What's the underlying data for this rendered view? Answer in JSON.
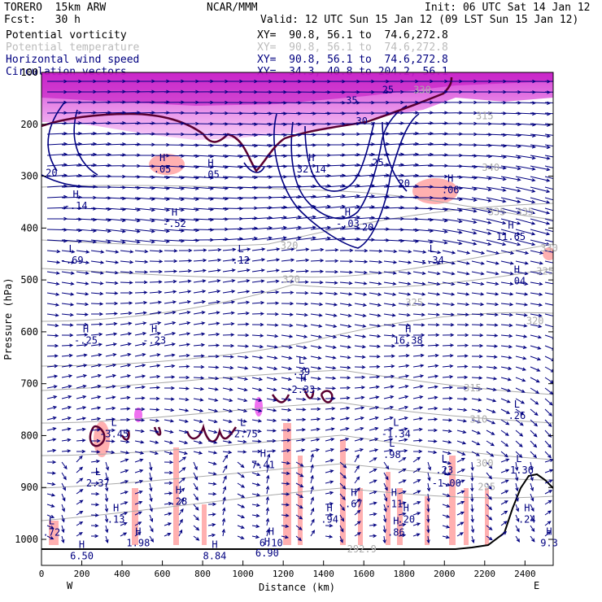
{
  "header": {
    "model": "TORERO  15km ARW",
    "org": "NCAR/MMM",
    "init": "Init: 06 UTC Sat 14 Jan 12",
    "fcst": "Fcst:   30 h",
    "valid": "Valid: 12 UTC Sun 15 Jan 12 (09 LST Sun 15 Jan 12)"
  },
  "legend": [
    {
      "name": "Potential vorticity",
      "xy": "XY=  90.8, 56.1 to  74.6,272.8",
      "color": "#000000"
    },
    {
      "name": "Potential temperature",
      "xy": "XY=  90.8, 56.1 to  74.6,272.8",
      "color": "#bbbbbb"
    },
    {
      "name": "Horizontal wind speed",
      "xy": "XY=  90.8, 56.1 to  74.6,272.8",
      "color": "#000080"
    },
    {
      "name": "Circulation vectors",
      "xy": "XY=  34.3, 40.8 to 204.2, 56.1",
      "color": "#000080"
    }
  ],
  "colors": {
    "pv_fill": "#e040e0",
    "pv_light": "#ffb0b0",
    "wind": "#000080",
    "theta": "#aaaaaa",
    "terrain_line": "#000000",
    "pv_contour": "#5a0030"
  },
  "chart_data": {
    "type": "cross-section",
    "xlabel": "Distance (km)",
    "ylabel": "Pressure (hPa)",
    "xlim": [
      0,
      2540
    ],
    "ylim": [
      1050,
      100
    ],
    "x_ticks": [
      "0",
      "200",
      "400",
      "600",
      "800",
      "1000",
      "1200",
      "1400",
      "1600",
      "1800",
      "2000",
      "2200",
      "2400"
    ],
    "y_ticks": [
      "100",
      "200",
      "300",
      "400",
      "500",
      "600",
      "700",
      "800",
      "900",
      "1000"
    ],
    "left_end": "W",
    "right_end": "E",
    "wind_speed_contours": [
      {
        "level": "20",
        "x": 50,
        "p": 300
      },
      {
        "level": "25",
        "x": 1720,
        "p": 140
      },
      {
        "level": "30",
        "x": 1590,
        "p": 200
      },
      {
        "level": "35",
        "x": 1540,
        "p": 160
      },
      {
        "level": "25",
        "x": 1670,
        "p": 280
      },
      {
        "level": "20",
        "x": 1800,
        "p": 320
      },
      {
        "level": "20",
        "x": 1620,
        "p": 405
      }
    ],
    "theta_labels": [
      {
        "text": "330",
        "x": 1890,
        "p": 140
      },
      {
        "text": "315",
        "x": 2200,
        "p": 190
      },
      {
        "text": "340",
        "x": 2230,
        "p": 290
      },
      {
        "text": "335",
        "x": 2260,
        "p": 375
      },
      {
        "text": "335",
        "x": 2400,
        "p": 375
      },
      {
        "text": "330",
        "x": 2520,
        "p": 445
      },
      {
        "text": "325",
        "x": 2500,
        "p": 490
      },
      {
        "text": "320",
        "x": 1230,
        "p": 440
      },
      {
        "text": "320",
        "x": 1240,
        "p": 505
      },
      {
        "text": "325",
        "x": 1850,
        "p": 550
      },
      {
        "text": "320",
        "x": 2450,
        "p": 585
      },
      {
        "text": "315",
        "x": 2140,
        "p": 715
      },
      {
        "text": "310",
        "x": 2170,
        "p": 775
      },
      {
        "text": "300",
        "x": 2200,
        "p": 860
      },
      {
        "text": "295",
        "x": 2210,
        "p": 905
      },
      {
        "text": "292.9",
        "x": 1590,
        "p": 1025
      }
    ],
    "extrema": [
      {
        "type": "H",
        "value": ".05",
        "x": 600,
        "p": 290
      },
      {
        "type": "H",
        "value": ".05",
        "x": 840,
        "p": 300
      },
      {
        "type": "H",
        "value": "32.14",
        "x": 1340,
        "p": 290
      },
      {
        "type": "H",
        "value": ".06",
        "x": 2030,
        "p": 330
      },
      {
        "type": "H",
        "value": "-.14",
        "x": 170,
        "p": 360
      },
      {
        "type": "H",
        "value": "-.52",
        "x": 660,
        "p": 395
      },
      {
        "type": "H",
        "value": "-.03",
        "x": 1520,
        "p": 395
      },
      {
        "type": "H",
        "value": "11.65",
        "x": 2330,
        "p": 420
      },
      {
        "type": "L",
        "value": "-.69",
        "x": 150,
        "p": 465
      },
      {
        "type": "L",
        "value": ".12",
        "x": 990,
        "p": 465
      },
      {
        "type": "L",
        "value": "-.34",
        "x": 1940,
        "p": 465
      },
      {
        "type": "H",
        "value": ".04",
        "x": 2360,
        "p": 505
      },
      {
        "type": "H",
        "value": "-.25",
        "x": 220,
        "p": 620
      },
      {
        "type": "H",
        "value": "-.23",
        "x": 560,
        "p": 620
      },
      {
        "type": "H",
        "value": "16.38",
        "x": 1820,
        "p": 620
      },
      {
        "type": "L",
        "value": ".39",
        "x": 1290,
        "p": 680
      },
      {
        "type": "H",
        "value": "2.33",
        "x": 1300,
        "p": 715
      },
      {
        "type": "L",
        "value": ".26",
        "x": 2360,
        "p": 765
      },
      {
        "type": "L",
        "value": "-3.45",
        "x": 360,
        "p": 800
      },
      {
        "type": "L",
        "value": "-2.75",
        "x": 1000,
        "p": 800
      },
      {
        "type": "L",
        "value": "-1.34",
        "x": 1760,
        "p": 800
      },
      {
        "type": "H",
        "value": "7.41",
        "x": 1100,
        "p": 860
      },
      {
        "type": "L",
        "value": ".98",
        "x": 1740,
        "p": 840
      },
      {
        "type": "L",
        "value": ".23",
        "x": 2000,
        "p": 870
      },
      {
        "type": "L",
        "value": "-1.36",
        "x": 2370,
        "p": 870
      },
      {
        "type": "L",
        "value": "2.37",
        "x": 280,
        "p": 895
      },
      {
        "type": "L",
        "value": "-1.00",
        "x": 2010,
        "p": 895
      },
      {
        "type": "H",
        "value": ".28",
        "x": 680,
        "p": 930
      },
      {
        "type": "H",
        "value": ".67",
        "x": 1550,
        "p": 935
      },
      {
        "type": "H",
        "value": ".11",
        "x": 1750,
        "p": 935
      },
      {
        "type": "H",
        "value": ".13",
        "x": 370,
        "p": 965
      },
      {
        "type": "H",
        "value": ".94",
        "x": 1430,
        "p": 965
      },
      {
        "type": "H",
        "value": ".20",
        "x": 1810,
        "p": 965
      },
      {
        "type": "H",
        "value": ".24",
        "x": 2410,
        "p": 965
      },
      {
        "type": "L",
        "value": ".72",
        "x": 50,
        "p": 990
      },
      {
        "type": "H",
        "value": ".86",
        "x": 1760,
        "p": 990
      },
      {
        "type": "H",
        "value": "1.98",
        "x": 480,
        "p": 1010
      },
      {
        "type": "H",
        "value": "6.10",
        "x": 1140,
        "p": 1010
      },
      {
        "type": "H",
        "value": "9.3",
        "x": 2520,
        "p": 1010
      },
      {
        "type": "H",
        "value": "6.50",
        "x": 200,
        "p": 1035
      },
      {
        "type": "H",
        "value": "8.84",
        "x": 860,
        "p": 1035
      },
      {
        "type": "H",
        "value": "6.90",
        "x": 1120,
        "p": 1030
      }
    ]
  }
}
